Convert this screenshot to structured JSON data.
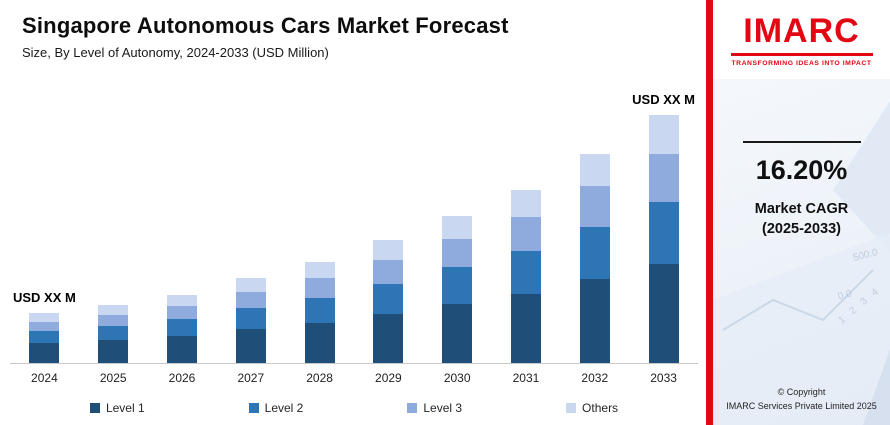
{
  "header": {
    "title": "Singapore Autonomous Cars Market Forecast",
    "subtitle": "Size, By Level of Autonomy, 2024-2033 (USD Million)"
  },
  "chart_data": {
    "type": "bar",
    "stacked": true,
    "title": "Singapore Autonomous Cars Market Forecast",
    "subtitle": "Size, By Level of Autonomy, 2024-2033 (USD Million)",
    "xlabel": "",
    "ylabel": "",
    "grid": false,
    "legend_position": "bottom",
    "value_note": "actual USD values masked as 'XX' in source; values are estimated relative magnitudes",
    "categories": [
      "2024",
      "2025",
      "2026",
      "2027",
      "2028",
      "2029",
      "2030",
      "2031",
      "2032",
      "2033"
    ],
    "series": [
      {
        "name": "Level 1",
        "color": "#1f4e79",
        "values": [
          20,
          23,
          27,
          34,
          40,
          49,
          59,
          69,
          84,
          99
        ]
      },
      {
        "name": "Level 2",
        "color": "#2e75b6",
        "values": [
          12,
          14,
          17,
          21,
          25,
          30,
          37,
          43,
          52,
          62
        ]
      },
      {
        "name": "Level 3",
        "color": "#8faadc",
        "values": [
          9,
          11,
          13,
          16,
          20,
          24,
          28,
          34,
          41,
          48
        ]
      },
      {
        "name": "Others",
        "color": "#c9d7f0",
        "values": [
          9,
          10,
          11,
          14,
          16,
          20,
          23,
          27,
          32,
          39
        ]
      }
    ],
    "totals": [
      50,
      58,
      68,
      85,
      101,
      123,
      147,
      173,
      209,
      248
    ],
    "annotations": [
      {
        "category_index": 0,
        "text": "USD XX M"
      },
      {
        "category_index": 9,
        "text": "USD XX M"
      }
    ]
  },
  "sidebar": {
    "brand": "IMARC",
    "tagline": "TRANSFORMING IDEAS INTO IMPACT",
    "accent_color": "#e30613",
    "cagr_value": "16.20%",
    "cagr_label_line1": "Market CAGR",
    "cagr_label_line2": "(2025-2033)",
    "copyright_line1": "© Copyright",
    "copyright_line2": "IMARC Services Private Limited 2025",
    "decor_texts": [
      "500.0",
      "0.0",
      "1 2 3 4"
    ]
  }
}
